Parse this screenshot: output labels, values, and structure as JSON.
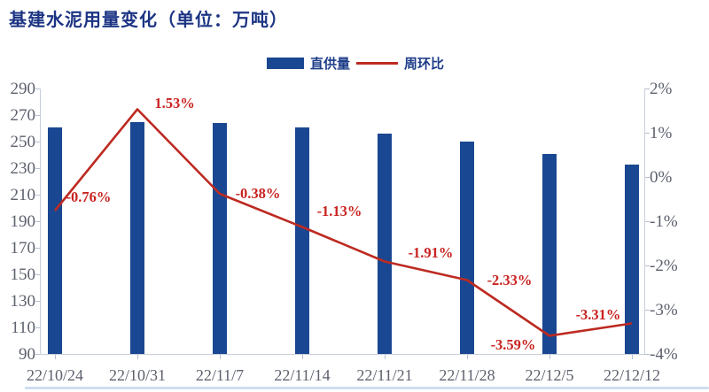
{
  "chart_data": {
    "type": "bar+line combo",
    "title": "基建水泥用量变化（单位：万吨）",
    "categories": [
      "22/10/24",
      "22/10/31",
      "22/11/7",
      "22/11/14",
      "22/11/21",
      "22/11/28",
      "22/12/5",
      "22/12/12"
    ],
    "series": [
      {
        "name": "直供量",
        "type": "bar",
        "axis": "left",
        "values": [
          261,
          265,
          264,
          261,
          256,
          250,
          241,
          233
        ]
      },
      {
        "name": "周环比",
        "type": "line",
        "axis": "right",
        "values": [
          -0.76,
          1.53,
          -0.38,
          -1.13,
          -1.91,
          -2.33,
          -3.59,
          -3.31
        ],
        "point_labels": [
          "-0.76%",
          "1.53%",
          "-0.38%",
          "-1.13%",
          "-1.91%",
          "-2.33%",
          "-3.59%",
          "-3.31%"
        ]
      }
    ],
    "left_axis": {
      "min": 90,
      "max": 290,
      "step": 20,
      "ticks": [
        "290",
        "270",
        "250",
        "230",
        "210",
        "190",
        "170",
        "150",
        "130",
        "110",
        "90"
      ]
    },
    "right_axis": {
      "min": -4,
      "max": 2,
      "step": 1,
      "ticks": [
        "2%",
        "1%",
        "0%",
        "-1%",
        "-2%",
        "-3%",
        "-4%"
      ]
    },
    "grid": false,
    "legend_position": "top-center"
  },
  "legend": {
    "items": [
      {
        "label": "直供量",
        "marker": "bar-swatch"
      },
      {
        "label": "周环比",
        "marker": "line-swatch"
      }
    ]
  },
  "colors": {
    "bar": "#1a4791",
    "line": "#bd2a21",
    "data_label": "#c92320",
    "title_text": "#1c3483",
    "legend_text": "#1d3c88",
    "axis_text": "#5c616d",
    "axis_line": "#c8cfdb",
    "tick": "#b6c0d2"
  }
}
